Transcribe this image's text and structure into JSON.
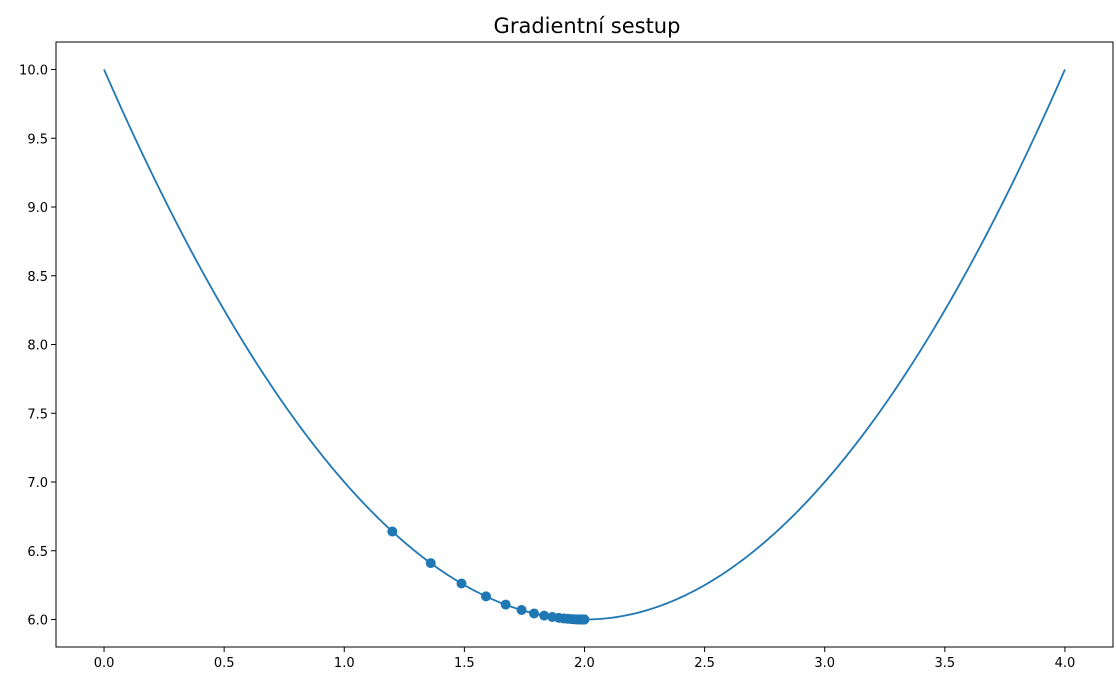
{
  "chart_data": {
    "type": "line",
    "title": "Gradientní sestup",
    "xlabel": "",
    "ylabel": "",
    "xlim": [
      -0.2,
      4.2
    ],
    "ylim": [
      5.8,
      10.2
    ],
    "grid": false,
    "x_ticks": [
      0.0,
      0.5,
      1.0,
      1.5,
      2.0,
      2.5,
      3.0,
      3.5,
      4.0
    ],
    "x_tick_labels": [
      "0.0",
      "0.5",
      "1.0",
      "1.5",
      "2.0",
      "2.5",
      "3.0",
      "3.5",
      "4.0"
    ],
    "y_ticks": [
      6.0,
      6.5,
      7.0,
      7.5,
      8.0,
      8.5,
      9.0,
      9.5,
      10.0
    ],
    "y_tick_labels": [
      "6.0",
      "6.5",
      "7.0",
      "7.5",
      "8.0",
      "8.5",
      "9.0",
      "9.5",
      "10.0"
    ],
    "series": [
      {
        "kind": "line",
        "function": "(x-2)^2 + 6",
        "x_range": [
          0.0,
          4.0
        ],
        "color": "#1f77b4"
      },
      {
        "kind": "scatter",
        "color": "#1f77b4",
        "points": [
          [
            1.2,
            6.64
          ],
          [
            1.36,
            6.41
          ],
          [
            1.488,
            6.262
          ],
          [
            1.59,
            6.168
          ],
          [
            1.672,
            6.108
          ],
          [
            1.738,
            6.069
          ],
          [
            1.79,
            6.044
          ],
          [
            1.832,
            6.028
          ],
          [
            1.866,
            6.018
          ],
          [
            1.893,
            6.012
          ],
          [
            1.914,
            6.007
          ],
          [
            1.931,
            6.005
          ],
          [
            1.945,
            6.003
          ],
          [
            1.956,
            6.002
          ],
          [
            1.965,
            6.001
          ],
          [
            1.972,
            6.001
          ],
          [
            1.977,
            6.001
          ],
          [
            1.982,
            6.0
          ],
          [
            1.986,
            6.0
          ],
          [
            1.988,
            6.0
          ],
          [
            1.991,
            6.0
          ],
          [
            1.993,
            6.0
          ],
          [
            1.994,
            6.0
          ],
          [
            1.995,
            6.0
          ],
          [
            1.996,
            6.0
          ],
          [
            1.997,
            6.0
          ],
          [
            1.998,
            6.0
          ],
          [
            1.998,
            6.0
          ],
          [
            1.999,
            6.0
          ],
          [
            1.999,
            6.0
          ],
          [
            1.999,
            6.0
          ],
          [
            1.999,
            6.0
          ]
        ]
      }
    ]
  }
}
